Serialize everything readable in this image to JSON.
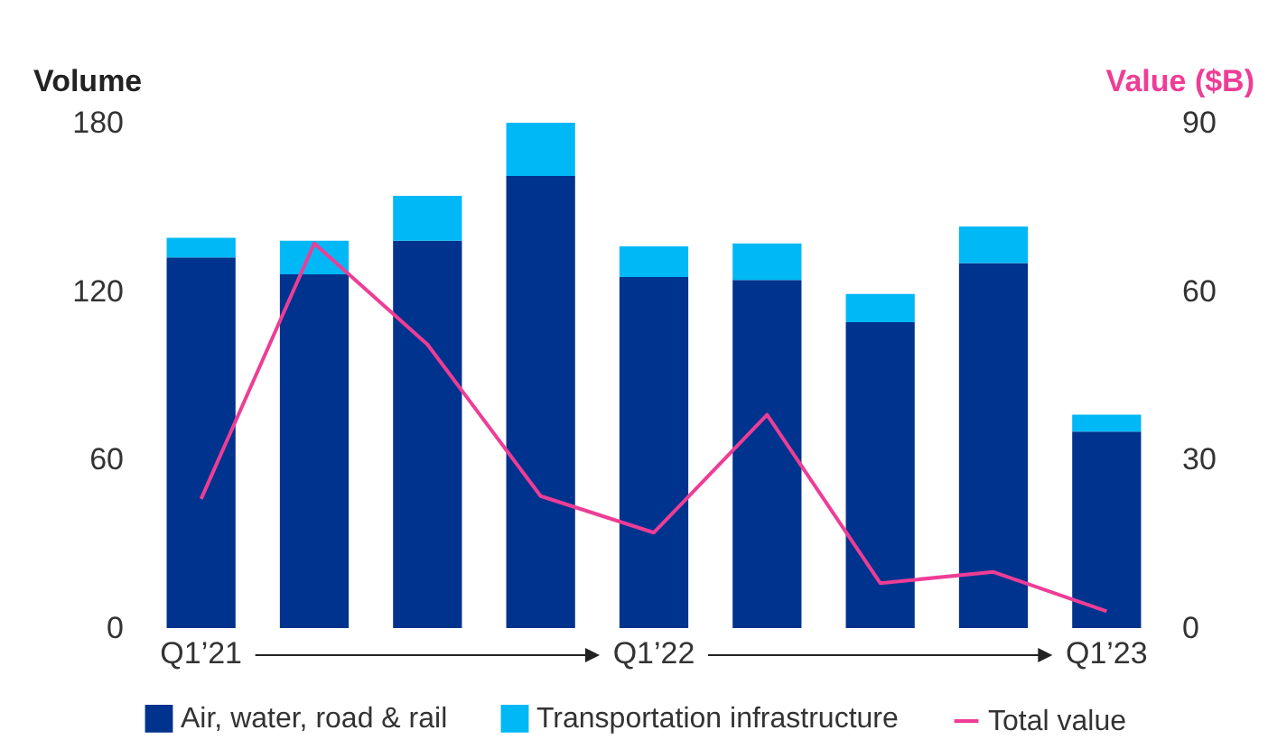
{
  "chart_data": {
    "type": "bar",
    "stacked": true,
    "categories": [
      "Q1’21",
      null,
      null,
      null,
      "Q1’22",
      null,
      null,
      null,
      "Q1’23"
    ],
    "ylabel": "Volume",
    "y2label": "Value ($B)",
    "ylim": [
      0,
      180
    ],
    "yticks": [
      0,
      60,
      120,
      180
    ],
    "y2lim": [
      0,
      90
    ],
    "y2ticks": [
      0,
      30,
      60,
      90
    ],
    "legend": "bottom",
    "series": [
      {
        "name": "Air, water, road & rail",
        "color": "#00338d",
        "values": [
          132,
          126,
          138,
          161,
          125,
          124,
          109,
          130,
          70
        ]
      },
      {
        "name": "Transportation infrastructure",
        "color": "#00b8f5",
        "values": [
          7,
          12,
          16,
          19,
          11,
          13,
          10,
          13,
          6
        ]
      },
      {
        "name": "Total value",
        "type": "line",
        "axis": "y2",
        "color": "#ee3d96",
        "values": [
          23,
          68.5,
          50.5,
          23.5,
          17,
          38,
          8,
          10,
          3
        ]
      }
    ]
  }
}
